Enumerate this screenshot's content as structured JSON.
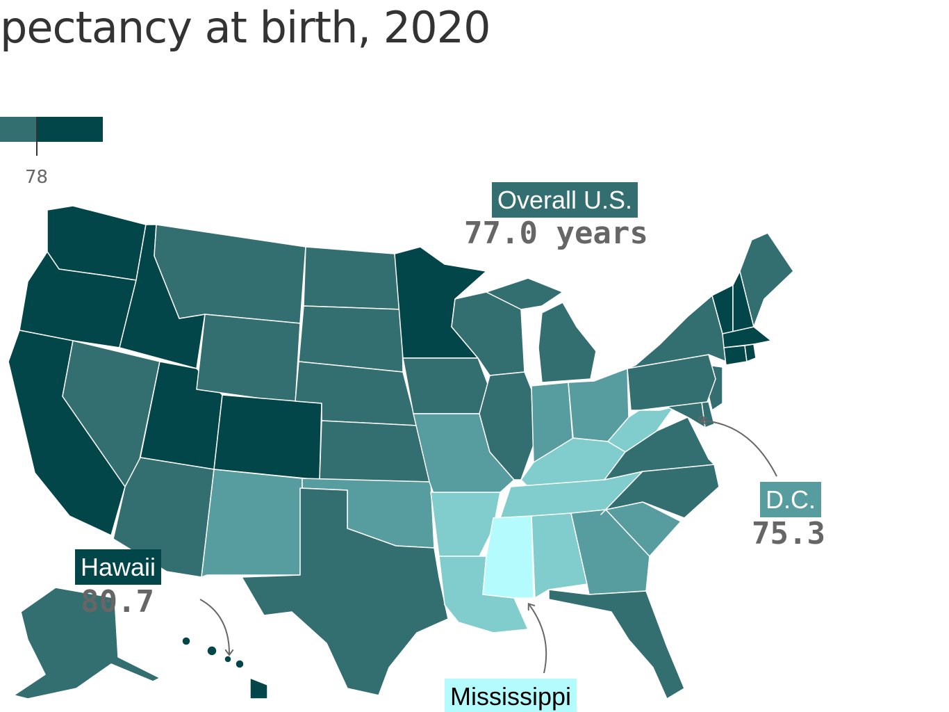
{
  "title": "pectancy at birth, 2020",
  "legend": {
    "tick_label": "78",
    "colors": [
      "#336e70",
      "#034649"
    ]
  },
  "annotations": {
    "overall": {
      "label": "Overall U.S.",
      "value": "77.0 years",
      "color": "#336e70"
    },
    "dc": {
      "label": "D.C.",
      "value": "75.3",
      "color": "#579c9e"
    },
    "hawaii": {
      "label": "Hawaii",
      "value": "80.7",
      "color": "#034649"
    },
    "mississippi": {
      "label": "Mississippi",
      "color": "#b3fbfc"
    }
  },
  "colors": {
    "darkest": "#034649",
    "dark": "#336e70",
    "mid": "#579c9e",
    "light": "#81cccc",
    "lightest": "#b3fbfc",
    "border": "#ffffff",
    "text": "#333333",
    "arrow": "#666666"
  },
  "states": [
    {
      "name": "Washington",
      "tier": "darkest"
    },
    {
      "name": "Oregon",
      "tier": "darkest"
    },
    {
      "name": "California",
      "tier": "darkest"
    },
    {
      "name": "Idaho",
      "tier": "darkest"
    },
    {
      "name": "Nevada",
      "tier": "dark"
    },
    {
      "name": "Utah",
      "tier": "darkest"
    },
    {
      "name": "Arizona",
      "tier": "dark"
    },
    {
      "name": "Montana",
      "tier": "dark"
    },
    {
      "name": "Wyoming",
      "tier": "dark"
    },
    {
      "name": "Colorado",
      "tier": "darkest"
    },
    {
      "name": "New Mexico",
      "tier": "mid"
    },
    {
      "name": "North Dakota",
      "tier": "dark"
    },
    {
      "name": "South Dakota",
      "tier": "dark"
    },
    {
      "name": "Nebraska",
      "tier": "dark"
    },
    {
      "name": "Kansas",
      "tier": "dark"
    },
    {
      "name": "Oklahoma",
      "tier": "mid"
    },
    {
      "name": "Texas",
      "tier": "dark"
    },
    {
      "name": "Minnesota",
      "tier": "darkest"
    },
    {
      "name": "Iowa",
      "tier": "dark"
    },
    {
      "name": "Missouri",
      "tier": "mid"
    },
    {
      "name": "Arkansas",
      "tier": "light"
    },
    {
      "name": "Louisiana",
      "tier": "light"
    },
    {
      "name": "Wisconsin",
      "tier": "dark"
    },
    {
      "name": "Illinois",
      "tier": "dark"
    },
    {
      "name": "Michigan",
      "tier": "dark"
    },
    {
      "name": "Indiana",
      "tier": "mid"
    },
    {
      "name": "Ohio",
      "tier": "mid"
    },
    {
      "name": "Kentucky",
      "tier": "light"
    },
    {
      "name": "Tennessee",
      "tier": "light"
    },
    {
      "name": "Mississippi",
      "tier": "lightest"
    },
    {
      "name": "Alabama",
      "tier": "light"
    },
    {
      "name": "Georgia",
      "tier": "mid"
    },
    {
      "name": "Florida",
      "tier": "dark"
    },
    {
      "name": "South Carolina",
      "tier": "mid"
    },
    {
      "name": "North Carolina",
      "tier": "dark"
    },
    {
      "name": "Virginia",
      "tier": "dark"
    },
    {
      "name": "West Virginia",
      "tier": "light"
    },
    {
      "name": "Maryland",
      "tier": "dark"
    },
    {
      "name": "Delaware",
      "tier": "dark"
    },
    {
      "name": "New Jersey",
      "tier": "dark"
    },
    {
      "name": "Pennsylvania",
      "tier": "dark"
    },
    {
      "name": "New York",
      "tier": "dark"
    },
    {
      "name": "Vermont",
      "tier": "darkest"
    },
    {
      "name": "New Hampshire",
      "tier": "darkest"
    },
    {
      "name": "Maine",
      "tier": "dark"
    },
    {
      "name": "Massachusetts",
      "tier": "darkest"
    },
    {
      "name": "Connecticut",
      "tier": "darkest"
    },
    {
      "name": "Rhode Island",
      "tier": "darkest"
    },
    {
      "name": "Alaska",
      "tier": "dark"
    },
    {
      "name": "Hawaii",
      "tier": "darkest"
    }
  ]
}
